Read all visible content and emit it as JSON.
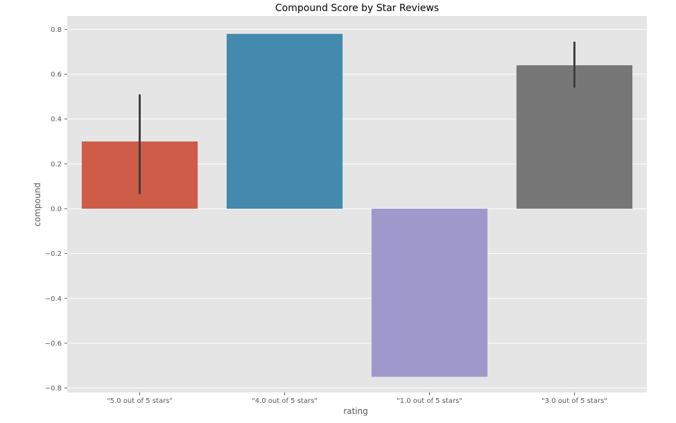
{
  "chart_data": {
    "type": "bar",
    "title": "Compound Score by Star Reviews",
    "xlabel": "rating",
    "ylabel": "compound",
    "categories": [
      "\"5.0 out of 5 stars\"",
      "\"4.0 out of 5 stars\"",
      "\"1.0 out of 5 stars\"",
      "\"3.0 out of 5 stars\""
    ],
    "values": [
      0.3,
      0.78,
      -0.75,
      0.64
    ],
    "error_bars": [
      [
        0.065,
        0.51
      ],
      null,
      null,
      [
        0.54,
        0.745
      ]
    ],
    "colors": [
      "#cd5c49",
      "#4489ae",
      "#9f98cb",
      "#777777"
    ],
    "ylim": [
      -0.82,
      0.86
    ],
    "yticks": [
      -0.8,
      -0.6,
      -0.4,
      -0.2,
      0.0,
      0.2,
      0.4,
      0.6,
      0.8
    ],
    "ytick_labels": [
      "−0.8",
      "−0.6",
      "−0.4",
      "−0.2",
      "0.0",
      "0.2",
      "0.4",
      "0.6",
      "0.8"
    ],
    "grid": true,
    "background": "#e5e5e5",
    "grid_color": "#ffffff",
    "errorbar_color": "#3f3f3f"
  }
}
